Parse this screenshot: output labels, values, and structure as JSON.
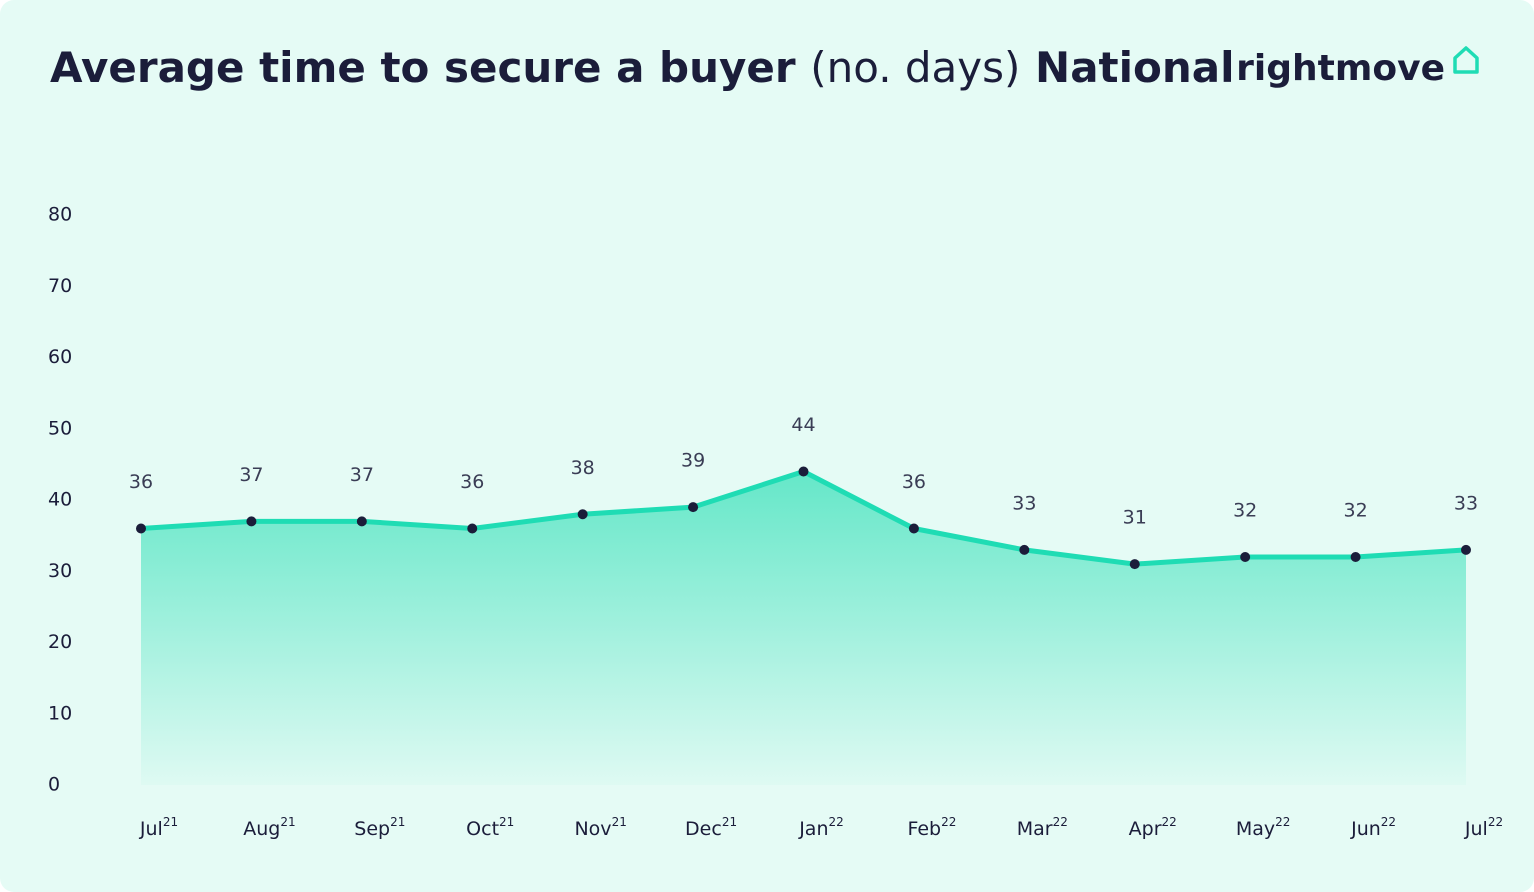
{
  "chart_data": {
    "type": "area",
    "title": "Average time to secure a buyer",
    "title_unit": "(no. days)",
    "title_region": "National",
    "logo": "rightmove",
    "categories": [
      "Jul 21",
      "Aug 21",
      "Sep 21",
      "Oct 21",
      "Nov 21",
      "Dec 21",
      "Jan 22",
      "Feb 22",
      "Mar 22",
      "Apr 22",
      "May 22",
      "Jun 22",
      "Jul 22"
    ],
    "values": [
      36,
      37,
      37,
      36,
      38,
      39,
      44,
      36,
      33,
      31,
      32,
      32,
      33
    ],
    "color": "#1fdcb4",
    "marker_color": "#1b1d3a",
    "ylim": [
      0,
      80
    ],
    "yticks": [
      0,
      10,
      20,
      30,
      40,
      50,
      60,
      70,
      80
    ],
    "grid": false
  }
}
